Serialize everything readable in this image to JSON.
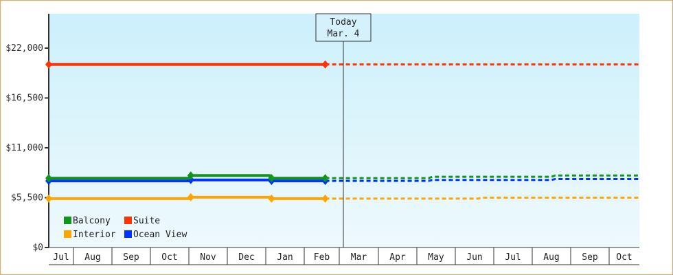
{
  "chart_data": {
    "type": "line",
    "title": "",
    "xlabel": "",
    "ylabel": "",
    "ylim": [
      0,
      26000
    ],
    "y_ticks": [
      "$0",
      "$5,500",
      "$11,000",
      "$16,500",
      "$22,000"
    ],
    "y_tick_values": [
      0,
      5500,
      11000,
      16500,
      22000
    ],
    "categories": [
      "Jul",
      "Aug",
      "Sep",
      "Oct",
      "Nov",
      "Dec",
      "Jan",
      "Feb",
      "Mar",
      "Apr",
      "May",
      "Jun",
      "Jul",
      "Aug",
      "Sep",
      "Oct"
    ],
    "today_marker": {
      "line1": "Today",
      "line2": "Mar. 4"
    },
    "legend_position": "bottom-left inside plot",
    "grid": false,
    "series": [
      {
        "name": "Balcony",
        "color": "#109618",
        "historical": [
          [
            0,
            7650
          ],
          [
            4,
            7650
          ],
          [
            4.05,
            7950
          ],
          [
            6.1,
            7950
          ],
          [
            6.15,
            7650
          ],
          [
            7.6,
            7650
          ]
        ],
        "projected": [
          [
            7.6,
            7650
          ],
          [
            10.3,
            7650
          ],
          [
            10.4,
            7800
          ],
          [
            13.5,
            7800
          ],
          [
            13.6,
            7950
          ],
          [
            16,
            7950
          ]
        ]
      },
      {
        "name": "Suite",
        "color": "#ff3300",
        "historical": [
          [
            0,
            20200
          ],
          [
            7.6,
            20200
          ]
        ],
        "projected": [
          [
            7.6,
            20200
          ],
          [
            16,
            20200
          ]
        ]
      },
      {
        "name": "Interior",
        "color": "#ffa500",
        "historical": [
          [
            0,
            5400
          ],
          [
            4,
            5400
          ],
          [
            4.05,
            5550
          ],
          [
            6.1,
            5550
          ],
          [
            6.15,
            5400
          ],
          [
            7.6,
            5400
          ]
        ],
        "projected": [
          [
            7.6,
            5400
          ],
          [
            11.6,
            5400
          ],
          [
            11.7,
            5500
          ],
          [
            16,
            5500
          ]
        ]
      },
      {
        "name": "Ocean View",
        "color": "#0033ff",
        "historical": [
          [
            0,
            7350
          ],
          [
            4,
            7350
          ],
          [
            4.05,
            7450
          ],
          [
            6.1,
            7450
          ],
          [
            6.15,
            7350
          ],
          [
            7.6,
            7350
          ]
        ],
        "projected": [
          [
            7.6,
            7350
          ],
          [
            10.3,
            7350
          ],
          [
            10.4,
            7450
          ],
          [
            13.5,
            7450
          ],
          [
            13.6,
            7550
          ],
          [
            16,
            7550
          ]
        ]
      }
    ]
  },
  "legend": {
    "items": [
      {
        "label": "Balcony",
        "color": "#109618"
      },
      {
        "label": "Suite",
        "color": "#ff3300"
      },
      {
        "label": "Interior",
        "color": "#ffa500"
      },
      {
        "label": "Ocean View",
        "color": "#0033ff"
      }
    ]
  }
}
